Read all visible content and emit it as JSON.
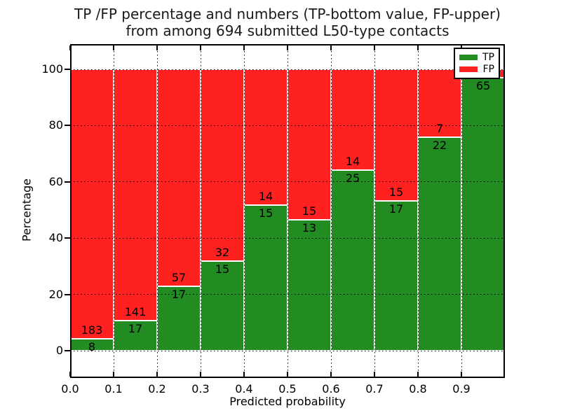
{
  "figure": {
    "title_line1": "TP /FP percentage and numbers (TP-bottom value, FP-upper)",
    "title_line2": "from among 694 submitted L50-type contacts",
    "xlabel": "Predicted probability",
    "ylabel": "Percentage"
  },
  "legend": {
    "position": "upper right",
    "items": [
      {
        "label": "TP",
        "color": "#228b22"
      },
      {
        "label": "FP",
        "color": "#ff2020"
      }
    ]
  },
  "chart_data": {
    "type": "bar",
    "stacked": true,
    "normalized_to_percent": 100,
    "title": "TP /FP percentage and numbers (TP-bottom value, FP-upper) from among 694 submitted L50-type contacts",
    "xlabel": "Predicted probability",
    "ylabel": "Percentage",
    "total_contacts": 694,
    "grid": true,
    "xlim": [
      0.0,
      1.0
    ],
    "ylim_display": [
      -11,
      110
    ],
    "bin_width": 0.1,
    "categories": [
      "0.0-0.1",
      "0.1-0.2",
      "0.2-0.3",
      "0.3-0.4",
      "0.4-0.5",
      "0.5-0.6",
      "0.6-0.7",
      "0.7-0.8",
      "0.8-0.9",
      "0.9-1.0"
    ],
    "xticks": [
      "0.0",
      "0.1",
      "0.2",
      "0.3",
      "0.4",
      "0.5",
      "0.6",
      "0.7",
      "0.8",
      "0.9"
    ],
    "yticks": [
      0,
      20,
      40,
      60,
      80,
      100
    ],
    "series": [
      {
        "name": "TP",
        "color": "#228b22",
        "values": [
          8,
          17,
          17,
          15,
          15,
          13,
          25,
          17,
          22,
          65
        ]
      },
      {
        "name": "FP",
        "color": "#ff2020",
        "values": [
          183,
          141,
          57,
          32,
          14,
          15,
          14,
          15,
          7,
          2
        ]
      }
    ],
    "tp_labels_shown": [
      "8",
      "17",
      "17",
      "15",
      "15",
      "13",
      "25",
      "17",
      "22",
      "65"
    ],
    "fp_labels_shown": [
      "183",
      "141",
      "57",
      "32",
      "14",
      "15",
      "14",
      "15",
      "7",
      null
    ],
    "tp_percent_by_bin": [
      4.2,
      10.8,
      23.0,
      31.9,
      51.7,
      46.4,
      64.1,
      53.1,
      75.9,
      97.0
    ]
  }
}
